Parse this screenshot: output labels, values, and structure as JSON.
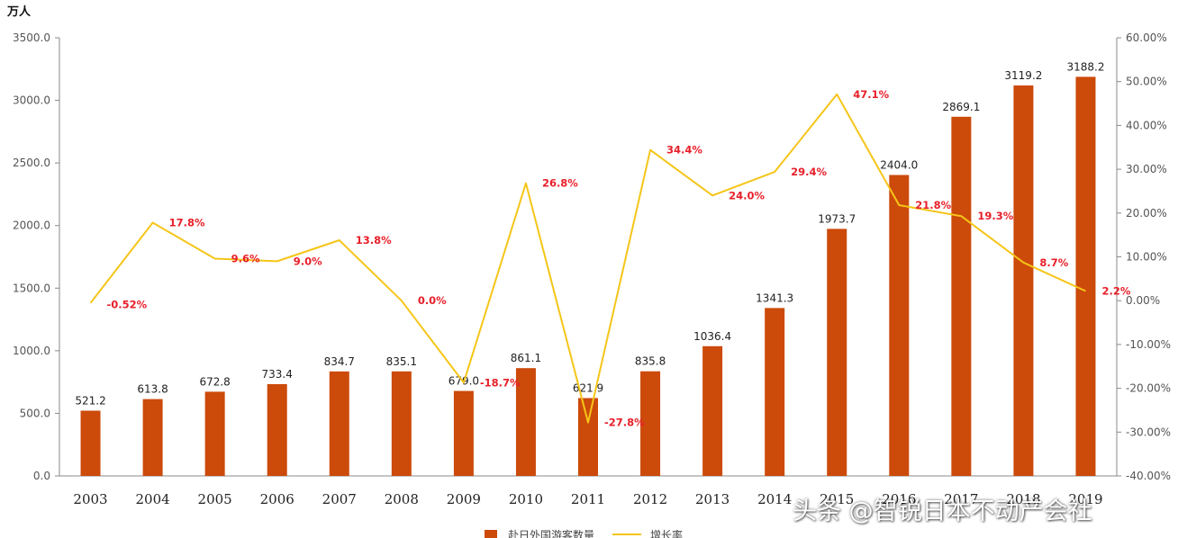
{
  "chart_data": {
    "type": "bar+line",
    "ylabel_left": "万人",
    "categories": [
      "2003",
      "2004",
      "2005",
      "2006",
      "2007",
      "2008",
      "2009",
      "2010",
      "2011",
      "2012",
      "2013",
      "2014",
      "2015",
      "2016",
      "2017",
      "2018",
      "2019"
    ],
    "series": [
      {
        "name": "赴日外国游客数量",
        "type": "bar",
        "axis": "left",
        "color": "#cc4a0a",
        "values": [
          521.2,
          613.8,
          672.8,
          733.4,
          834.7,
          835.1,
          679.0,
          861.1,
          621.9,
          835.8,
          1036.4,
          1341.3,
          1973.7,
          2404.0,
          2869.1,
          3119.2,
          3188.2
        ],
        "labels": [
          "521.2",
          "613.8",
          "672.8",
          "733.4",
          "834.7",
          "835.1",
          "679.0",
          "861.1",
          "621.9",
          "835.8",
          "1036.4",
          "1341.3",
          "1973.7",
          "2404.0",
          "2869.1",
          "3119.2",
          "3188.2"
        ]
      },
      {
        "name": "增长率",
        "type": "line",
        "axis": "right",
        "color": "#f5c518",
        "values": [
          -0.52,
          17.8,
          9.6,
          9.0,
          13.8,
          0.0,
          -18.7,
          26.8,
          -27.8,
          34.4,
          24.0,
          29.4,
          47.1,
          21.8,
          19.3,
          8.7,
          2.2
        ],
        "labels": [
          "-0.52%",
          "17.8%",
          "9.6%",
          "9.0%",
          "13.8%",
          "0.0%",
          "-18.7%",
          "26.8%",
          "-27.8%",
          "34.4%",
          "24.0%",
          "29.4%",
          "47.1%",
          "21.8%",
          "19.3%",
          "8.7%",
          "2.2%"
        ]
      }
    ],
    "ylim_left": [
      0,
      3500
    ],
    "yticks_left": [
      "0.0",
      "500.0",
      "1000.0",
      "1500.0",
      "2000.0",
      "2500.0",
      "3000.0",
      "3500.0"
    ],
    "ylim_right": [
      -40,
      60
    ],
    "yticks_right": [
      "-40.00%",
      "-30.00%",
      "-20.00%",
      "-10.00%",
      "0.00%",
      "10.00%",
      "20.00%",
      "30.00%",
      "40.00%",
      "50.00%",
      "60.00%"
    ],
    "legend_position": "bottom-center"
  },
  "watermark": "头条 @智锐日本不动产会社"
}
